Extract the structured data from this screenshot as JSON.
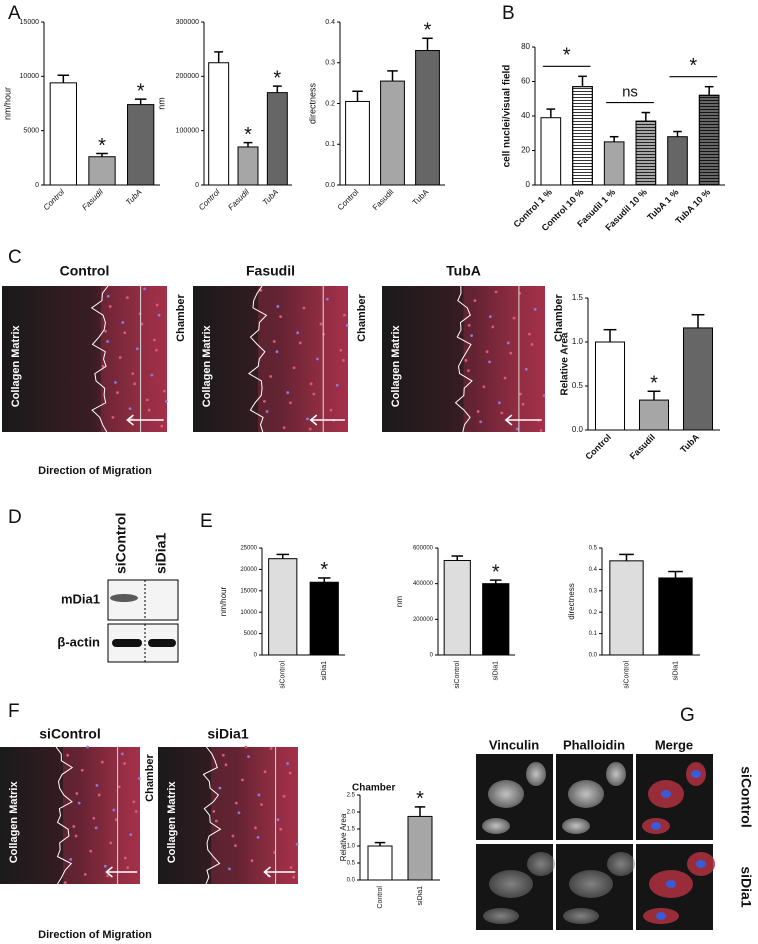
{
  "chart_data": [
    {
      "type": "bar",
      "ylabel": "nm/hour",
      "categories": [
        "Control",
        "Fasudil",
        "TubA"
      ],
      "values": [
        9400,
        2600,
        7400
      ],
      "errors": [
        700,
        300,
        500
      ],
      "colors": [
        "#ffffff",
        "#a6a6a6",
        "#666666"
      ],
      "ylim": [
        0,
        15000
      ],
      "yticks": [
        0,
        5000,
        10000,
        15000
      ],
      "annotations": [
        {
          "text": "*",
          "at": "Fasudil"
        },
        {
          "text": "*",
          "at": "TubA"
        }
      ]
    },
    {
      "type": "bar",
      "ylabel": "nm",
      "categories": [
        "Control",
        "Fasudil",
        "TubA"
      ],
      "values": [
        225000,
        70000,
        170000
      ],
      "errors": [
        20000,
        8000,
        12000
      ],
      "colors": [
        "#ffffff",
        "#a6a6a6",
        "#666666"
      ],
      "ylim": [
        0,
        300000
      ],
      "yticks": [
        0,
        100000,
        200000,
        300000
      ],
      "annotations": [
        {
          "text": "*",
          "at": "Fasudil"
        },
        {
          "text": "*",
          "at": "TubA"
        }
      ]
    },
    {
      "type": "bar",
      "ylabel": "directness",
      "categories": [
        "Control",
        "Fasudil",
        "TubA"
      ],
      "values": [
        0.205,
        0.255,
        0.33
      ],
      "errors": [
        0.025,
        0.025,
        0.03
      ],
      "colors": [
        "#ffffff",
        "#a6a6a6",
        "#666666"
      ],
      "ylim": [
        0,
        0.4
      ],
      "yticks": [
        {
          "value": 0,
          "label": "0.0"
        },
        0.1,
        0.2,
        0.3,
        0.4
      ],
      "annotations": [
        {
          "text": "*",
          "at": "TubA"
        }
      ]
    },
    {
      "type": "bar",
      "ylabel": "cell nuclei/visual field",
      "categories": [
        "Control 1 %",
        "Control 10 %",
        "Fasudil 1 %",
        "Fasudil 10 %",
        "TubA 1 %",
        "TubA 10 %"
      ],
      "values": [
        39,
        57,
        25,
        37,
        28,
        52
      ],
      "errors": [
        5,
        6,
        3,
        5,
        3,
        5
      ],
      "colors": [
        "#ffffff",
        "#ffffff",
        "#a6a6a6",
        "#a6a6a6",
        "#666666",
        "#666666"
      ],
      "hatched": [
        false,
        true,
        false,
        true,
        false,
        true
      ],
      "ylim": [
        0,
        80
      ],
      "yticks": [
        0,
        20,
        40,
        60,
        80
      ],
      "brackets": [
        {
          "text": "*",
          "from": "Control 1 %",
          "to": "Control 10 %"
        },
        {
          "text": "ns",
          "from": "Fasudil 1 %",
          "to": "Fasudil 10 %"
        },
        {
          "text": "*",
          "from": "TubA 1 %",
          "to": "TubA 10 %"
        }
      ]
    },
    {
      "type": "bar",
      "ylabel": "Relative Area",
      "categories": [
        "Control",
        "Fasudil",
        "TubA"
      ],
      "values": [
        1.0,
        0.34,
        1.16
      ],
      "errors": [
        0.14,
        0.1,
        0.15
      ],
      "colors": [
        "#ffffff",
        "#a6a6a6",
        "#666666"
      ],
      "ylim": [
        0,
        1.5
      ],
      "yticks": [
        {
          "value": 0,
          "label": "0.0"
        },
        0.5,
        {
          "value": 1,
          "label": "1.0"
        },
        1.5
      ],
      "annotations": [
        {
          "text": "*",
          "at": "Fasudil"
        }
      ]
    },
    {
      "type": "bar",
      "ylabel": "nm/hour",
      "categories": [
        "siControl",
        "siDia1"
      ],
      "values": [
        22500,
        17000
      ],
      "errors": [
        1000,
        1000
      ],
      "colors": [
        "#dddddd",
        "#000000"
      ],
      "ylim": [
        0,
        25000
      ],
      "yticks": [
        0,
        5000,
        10000,
        15000,
        20000,
        25000
      ],
      "annotations": [
        {
          "text": "*",
          "at": "siDia1"
        }
      ]
    },
    {
      "type": "bar",
      "ylabel": "nm",
      "categories": [
        "siControl",
        "siDia1"
      ],
      "values": [
        530000,
        400000
      ],
      "errors": [
        25000,
        20000
      ],
      "colors": [
        "#dddddd",
        "#000000"
      ],
      "ylim": [
        0,
        600000
      ],
      "yticks": [
        0,
        200000,
        400000,
        600000
      ],
      "annotations": [
        {
          "text": "*",
          "at": "siDia1"
        }
      ]
    },
    {
      "type": "bar",
      "ylabel": "directness",
      "categories": [
        "siControl",
        "siDia1"
      ],
      "values": [
        0.44,
        0.36
      ],
      "errors": [
        0.03,
        0.03
      ],
      "colors": [
        "#dddddd",
        "#000000"
      ],
      "ylim": [
        0,
        0.5
      ],
      "yticks": [
        {
          "value": 0,
          "label": "0.0"
        },
        0.1,
        0.2,
        0.3,
        0.4,
        0.5
      ]
    },
    {
      "type": "bar",
      "ylabel": "Relative Area",
      "categories": [
        "Control",
        "siDia1"
      ],
      "values": [
        1.0,
        1.87
      ],
      "errors": [
        0.1,
        0.28
      ],
      "colors": [
        "#ffffff",
        "#a6a6a6"
      ],
      "ylim": [
        0,
        2.5
      ],
      "yticks": [
        {
          "value": 0,
          "label": "0.0"
        },
        0.5,
        {
          "value": 1,
          "label": "1.0"
        },
        1.5,
        {
          "value": 2,
          "label": "2.0"
        },
        2.5
      ],
      "annotations": [
        {
          "text": "*",
          "at": "siDia1"
        }
      ]
    }
  ],
  "panels": {
    "letters": [
      "A",
      "B",
      "C",
      "D",
      "E",
      "F",
      "G"
    ],
    "C": {
      "images": [
        "Control",
        "Fasudil",
        "TubA"
      ],
      "matrix": "Collagen Matrix",
      "chamber": "Chamber",
      "direction": "Direction of Migration"
    },
    "D": {
      "lanes": [
        "siControl",
        "siDia1"
      ],
      "rows": [
        "mDia1",
        "β-actin"
      ]
    },
    "F": {
      "images": [
        "siControl",
        "siDia1"
      ],
      "matrix": "Collagen Matrix",
      "chamber": "Chamber",
      "direction": "Direction of Migration"
    },
    "G": {
      "columns": [
        "Vinculin",
        "Phalloidin",
        "Merge"
      ],
      "rows": [
        "siControl",
        "siDia1"
      ]
    }
  }
}
